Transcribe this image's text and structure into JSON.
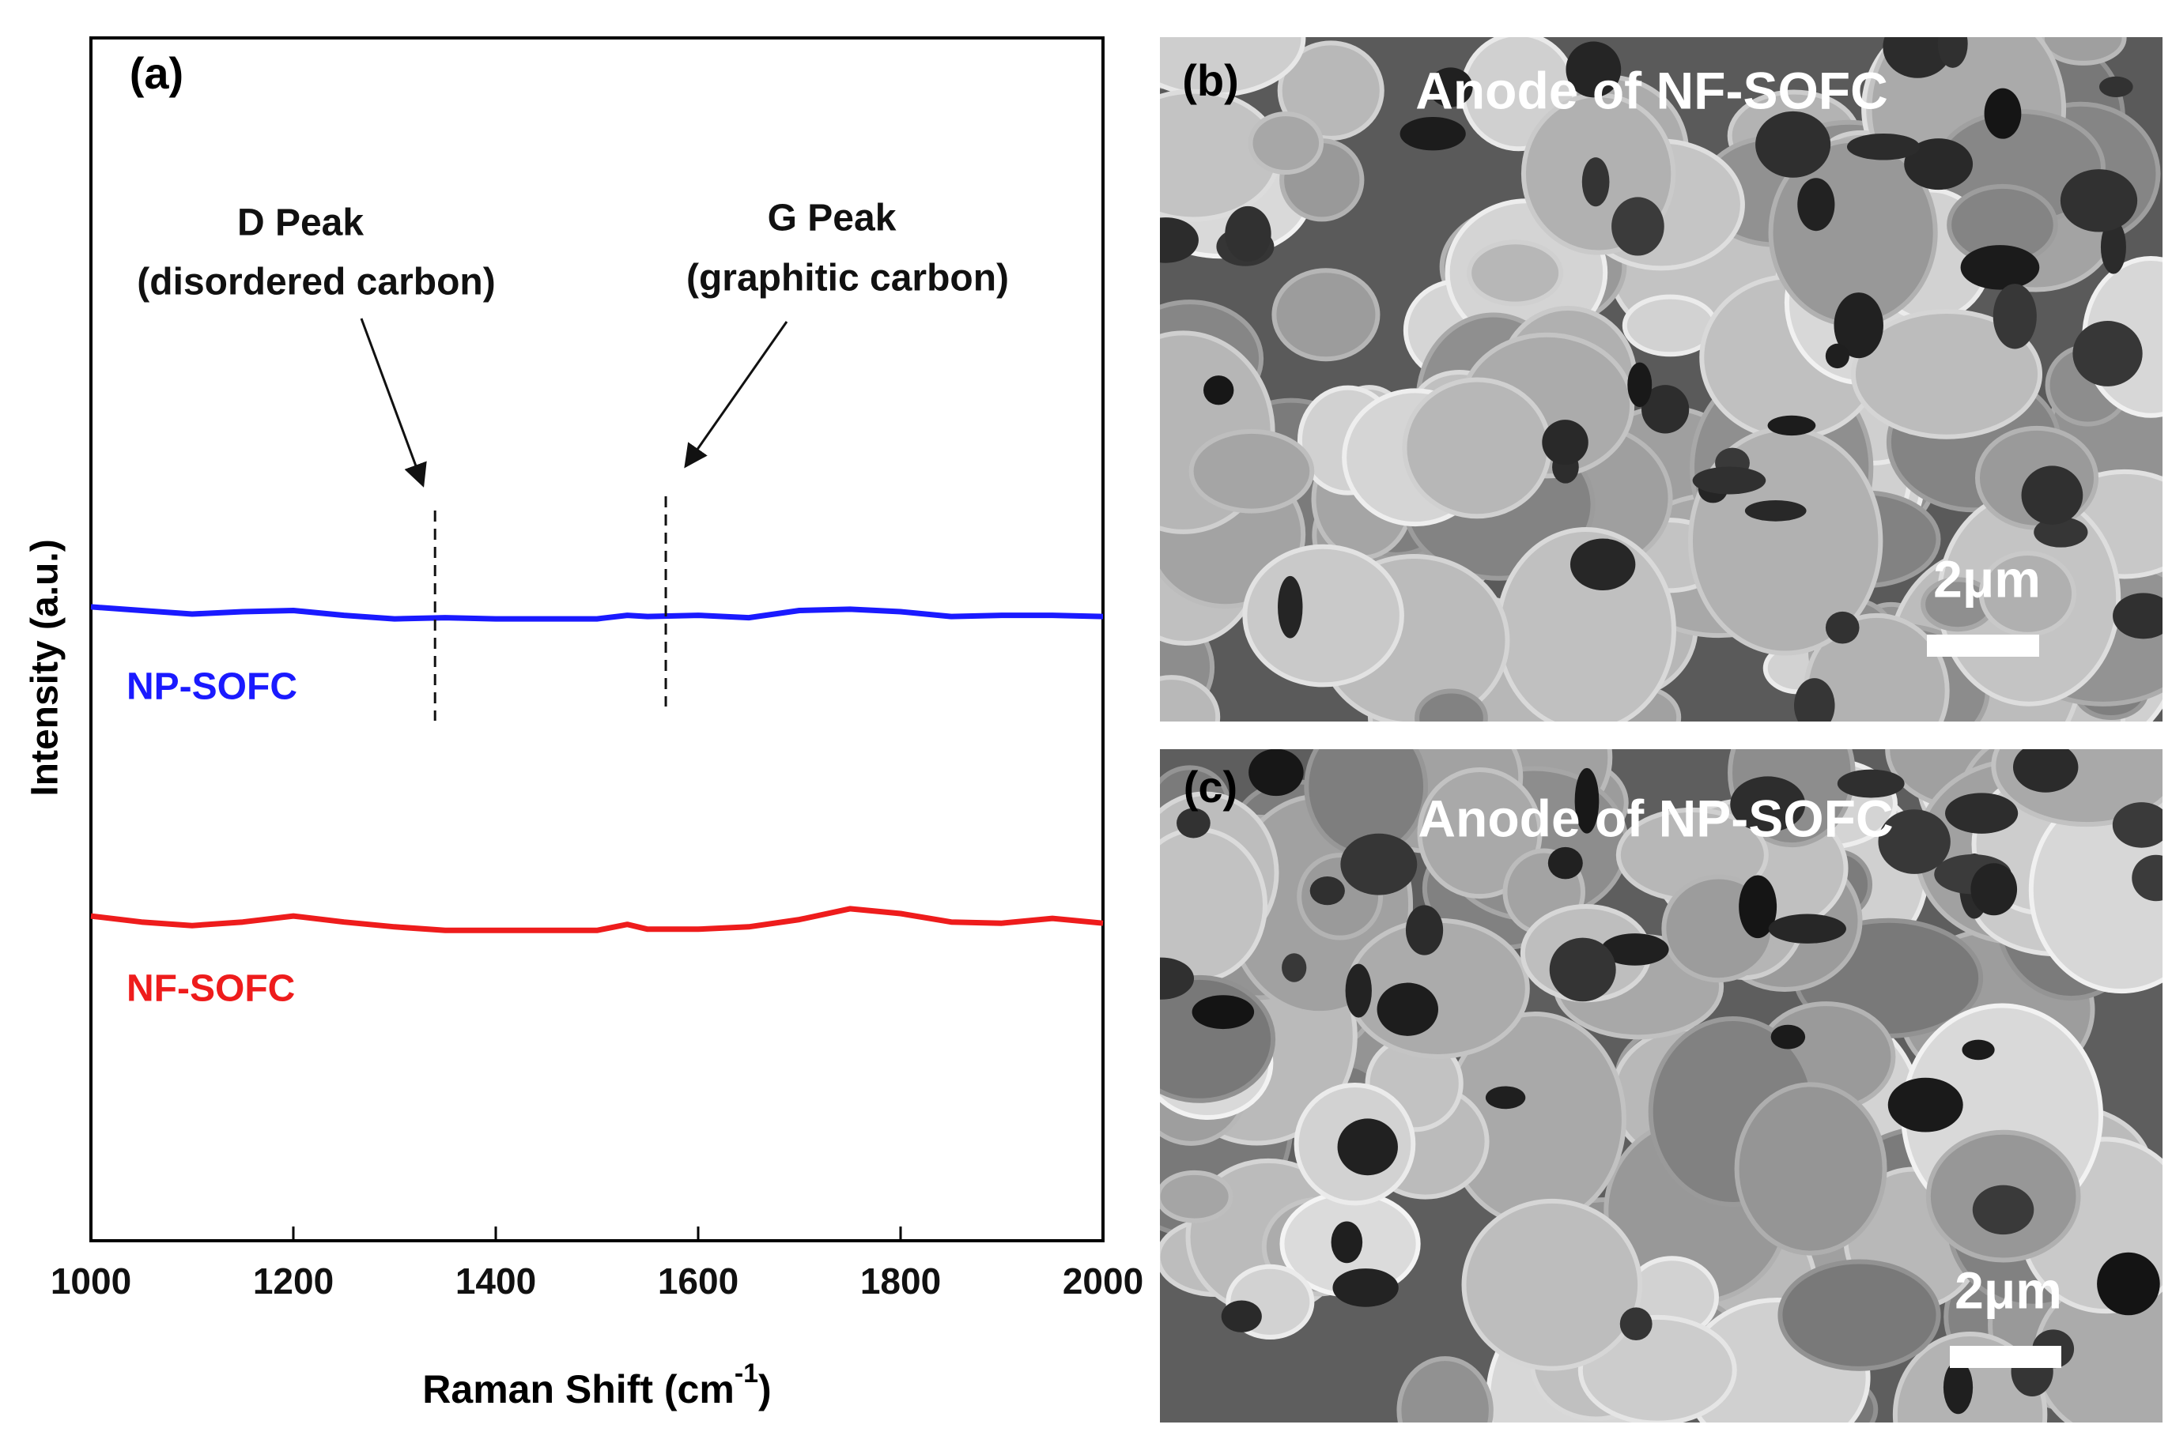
{
  "chart_data": {
    "type": "line",
    "panel_label": "(a)",
    "xlabel": [
      "Raman Shift (cm",
      "-1",
      ")"
    ],
    "ylabel": "Intensity (a.u.)",
    "x": [
      1000,
      1050,
      1100,
      1150,
      1200,
      1250,
      1300,
      1350,
      1400,
      1450,
      1500,
      1530,
      1550,
      1600,
      1650,
      1700,
      1750,
      1800,
      1850,
      1900,
      1950,
      2000
    ],
    "series": [
      {
        "name": "NP-SOFC",
        "color": "#1a1aff",
        "values": [
          52.7,
          52.4,
          52.1,
          52.3,
          52.4,
          52.0,
          51.7,
          51.8,
          51.7,
          51.7,
          51.7,
          52.0,
          51.9,
          52.0,
          51.8,
          52.4,
          52.5,
          52.3,
          51.9,
          52.0,
          52.0,
          51.9
        ]
      },
      {
        "name": "NF-SOFC",
        "color": "#ee1c1c",
        "values": [
          27.0,
          26.5,
          26.2,
          26.5,
          27.0,
          26.5,
          26.1,
          25.8,
          25.8,
          25.8,
          25.8,
          26.3,
          25.9,
          25.9,
          26.1,
          26.7,
          27.6,
          27.2,
          26.5,
          26.4,
          26.8,
          26.4
        ]
      }
    ],
    "xlim": [
      1000,
      2000
    ],
    "xticks": [
      1000,
      1200,
      1400,
      1600,
      1800,
      2000
    ],
    "ylim": [
      0,
      100
    ],
    "annotations": [
      {
        "lines": [
          "D Peak",
          "(disordered carbon)"
        ],
        "x": 1340
      },
      {
        "lines": [
          "G Peak",
          "(graphitic carbon)"
        ],
        "x": 1568
      }
    ]
  },
  "images": [
    {
      "panel_label": "(b)",
      "caption": "Anode of NF-SOFC",
      "scale_bar": "2μm"
    },
    {
      "panel_label": "(c)",
      "caption": "Anode of NP-SOFC",
      "scale_bar": "2μm"
    }
  ]
}
